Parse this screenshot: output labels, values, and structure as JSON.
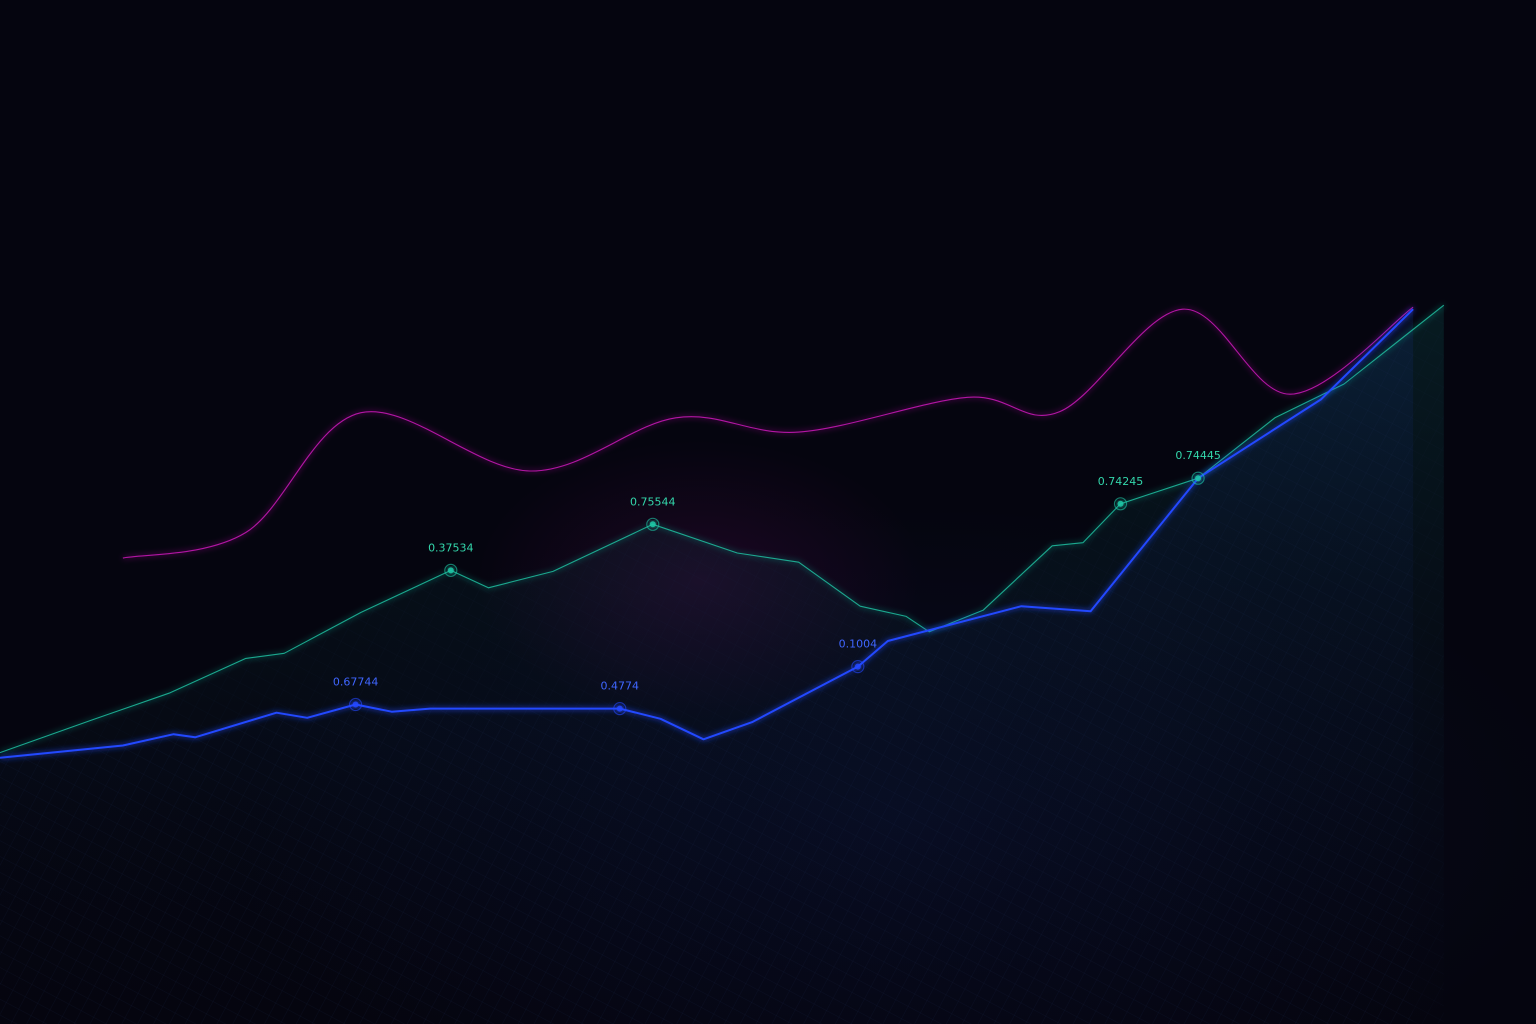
{
  "chart_data": {
    "type": "line",
    "title": "",
    "xlabel": "",
    "ylabel": "",
    "grid": false,
    "legend": "none",
    "series": [
      {
        "color": "#c21ab0",
        "style": "smooth",
        "points": [
          [
            0.08,
            0.545
          ],
          [
            0.16,
            0.52
          ],
          [
            0.235,
            0.403
          ],
          [
            0.345,
            0.46
          ],
          [
            0.44,
            0.408
          ],
          [
            0.52,
            0.422
          ],
          [
            0.63,
            0.388
          ],
          [
            0.69,
            0.402
          ],
          [
            0.77,
            0.302
          ],
          [
            0.84,
            0.385
          ],
          [
            0.92,
            0.3
          ]
        ]
      },
      {
        "color": "#1fc9a8",
        "style": "linear",
        "points": [
          [
            0.0,
            0.735
          ],
          [
            0.06,
            0.703
          ],
          [
            0.11,
            0.677
          ],
          [
            0.16,
            0.643
          ],
          [
            0.185,
            0.638
          ],
          [
            0.235,
            0.598
          ],
          [
            0.2935,
            0.557
          ],
          [
            0.318,
            0.574
          ],
          [
            0.36,
            0.558
          ],
          [
            0.425,
            0.512
          ],
          [
            0.48,
            0.54
          ],
          [
            0.52,
            0.549
          ],
          [
            0.56,
            0.592
          ],
          [
            0.59,
            0.602
          ],
          [
            0.605,
            0.617
          ],
          [
            0.64,
            0.596
          ],
          [
            0.685,
            0.533
          ],
          [
            0.705,
            0.53
          ],
          [
            0.7295,
            0.492
          ],
          [
            0.78,
            0.467
          ],
          [
            0.83,
            0.408
          ],
          [
            0.875,
            0.375
          ],
          [
            0.94,
            0.298
          ]
        ],
        "labels": [
          {
            "x": 0.2935,
            "y": 0.557,
            "text": "0.37534"
          },
          {
            "x": 0.425,
            "y": 0.512,
            "text": "0.75544"
          },
          {
            "x": 0.7295,
            "y": 0.492,
            "text": "0.74245"
          },
          {
            "x": 0.78,
            "y": 0.467,
            "text": "0.74445"
          }
        ]
      },
      {
        "color": "#2448ff",
        "style": "linear",
        "points": [
          [
            0.0,
            0.74
          ],
          [
            0.08,
            0.728
          ],
          [
            0.113,
            0.717
          ],
          [
            0.127,
            0.72
          ],
          [
            0.18,
            0.696
          ],
          [
            0.2,
            0.701
          ],
          [
            0.2315,
            0.688
          ],
          [
            0.255,
            0.695
          ],
          [
            0.28,
            0.692
          ],
          [
            0.35,
            0.692
          ],
          [
            0.4035,
            0.692
          ],
          [
            0.43,
            0.702
          ],
          [
            0.458,
            0.722
          ],
          [
            0.49,
            0.705
          ],
          [
            0.5585,
            0.651
          ],
          [
            0.578,
            0.626
          ],
          [
            0.665,
            0.592
          ],
          [
            0.71,
            0.597
          ],
          [
            0.78,
            0.467
          ],
          [
            0.86,
            0.39
          ],
          [
            0.92,
            0.302
          ]
        ],
        "labels": [
          {
            "x": 0.2315,
            "y": 0.688,
            "text": "0.67744"
          },
          {
            "x": 0.4035,
            "y": 0.692,
            "text": "0.4774"
          },
          {
            "x": 0.5585,
            "y": 0.651,
            "text": "0.1004"
          }
        ]
      }
    ]
  }
}
